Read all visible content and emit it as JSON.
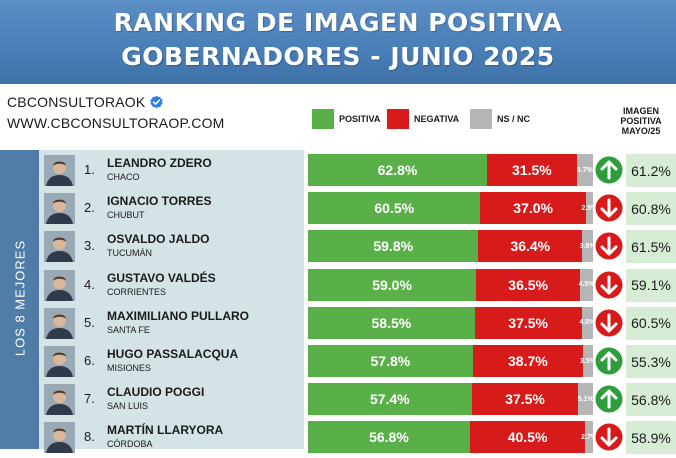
{
  "header": {
    "title_line1": "RANKING DE IMAGEN POSITIVA",
    "title_line2": "GOBERNADORES - JUNIO 2025"
  },
  "brand": {
    "handle": "CBCONSULTORAOK",
    "website": "WWW.CBCONSULTORAOP.COM",
    "verified_icon": "verified-check-icon",
    "verified_color": "#2b7de9"
  },
  "legend": {
    "positiva": "POSITIVA",
    "negativa": "NEGATIVA",
    "nsnc": "NS / NC"
  },
  "previous_header": {
    "line1": "IMAGEN",
    "line2": "POSITIVA",
    "line3": "MAYO/25"
  },
  "sidebar_label": "LOS 8 MEJORES",
  "colors": {
    "positiva": "#5ab048",
    "negativa": "#d71a1a",
    "nsnc": "#b5b5b5",
    "arrow_up": "#2e9e3a",
    "arrow_down": "#d71a1a",
    "previous_bg": "#d7ecd4",
    "header_bg": "#4a7fb8"
  },
  "chart_data": {
    "type": "bar",
    "stacked": true,
    "orientation": "horizontal",
    "title": "RANKING DE IMAGEN POSITIVA GOBERNADORES - JUNIO 2025",
    "series_names": [
      "POSITIVA",
      "NEGATIVA",
      "NS / NC"
    ],
    "rows": [
      {
        "rank": "1.",
        "name": "LEANDRO ZDERO",
        "province": "CHACO",
        "positiva": 62.8,
        "negativa": 31.5,
        "nsnc": 5.7,
        "positiva_label": "62.8%",
        "negativa_label": "31.5%",
        "nsnc_label": "5.7%",
        "trend": "up",
        "previous": "61.2%"
      },
      {
        "rank": "2.",
        "name": "IGNACIO TORRES",
        "province": "CHUBUT",
        "positiva": 60.5,
        "negativa": 37.0,
        "nsnc": 2.5,
        "positiva_label": "60.5%",
        "negativa_label": "37.0%",
        "nsnc_label": "2.5%",
        "trend": "down",
        "previous": "60.8%"
      },
      {
        "rank": "3.",
        "name": "OSVALDO JALDO",
        "province": "TUCUMÁN",
        "positiva": 59.8,
        "negativa": 36.4,
        "nsnc": 3.8,
        "positiva_label": "59.8%",
        "negativa_label": "36.4%",
        "nsnc_label": "3.8%",
        "trend": "down",
        "previous": "61.5%"
      },
      {
        "rank": "4.",
        "name": "GUSTAVO VALDÉS",
        "province": "CORRIENTES",
        "positiva": 59.0,
        "negativa": 36.5,
        "nsnc": 4.5,
        "positiva_label": "59.0%",
        "negativa_label": "36.5%",
        "nsnc_label": "4.5%",
        "trend": "down",
        "previous": "59.1%"
      },
      {
        "rank": "5.",
        "name": "MAXIMILIANO PULLARO",
        "province": "SANTA FE",
        "positiva": 58.5,
        "negativa": 37.5,
        "nsnc": 4.0,
        "positiva_label": "58.5%",
        "negativa_label": "37.5%",
        "nsnc_label": "4.0%",
        "trend": "down",
        "previous": "60.5%"
      },
      {
        "rank": "6.",
        "name": "HUGO PASSALACQUA",
        "province": "MISIONES",
        "positiva": 57.8,
        "negativa": 38.7,
        "nsnc": 3.5,
        "positiva_label": "57.8%",
        "negativa_label": "38.7%",
        "nsnc_label": "3.5%",
        "trend": "up",
        "previous": "55.3%"
      },
      {
        "rank": "7.",
        "name": "CLAUDIO POGGI",
        "province": "SAN LUIS",
        "positiva": 57.4,
        "negativa": 37.5,
        "nsnc": 5.1,
        "positiva_label": "57.4%",
        "negativa_label": "37.5%",
        "nsnc_label": "5.1%",
        "trend": "up",
        "previous": "56.8%"
      },
      {
        "rank": "8.",
        "name": "MARTÍN LLARYORA",
        "province": "CÓRDOBA",
        "positiva": 56.8,
        "negativa": 40.5,
        "nsnc": 2.7,
        "positiva_label": "56.8%",
        "negativa_label": "40.5%",
        "nsnc_label": "2.7%",
        "trend": "down",
        "previous": "58.9%"
      }
    ]
  }
}
